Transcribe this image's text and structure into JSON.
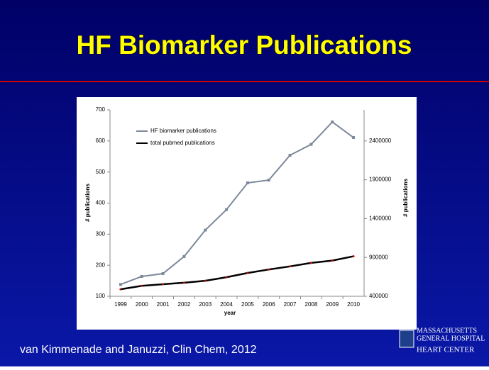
{
  "chart_data": {
    "type": "line",
    "title": "HF Biomarker Publications",
    "categories": [
      "1999",
      "2000",
      "2001",
      "2002",
      "2003",
      "2004",
      "2005",
      "2006",
      "2007",
      "2008",
      "2009",
      "2010"
    ],
    "series": [
      {
        "name": "HF biomarker publications",
        "color": "#7d889b",
        "values": [
          138,
          164,
          173,
          228,
          313,
          379,
          465,
          474,
          554,
          589,
          661,
          611
        ]
      },
      {
        "name": "total pubmed publications",
        "color": "#000000",
        "axis": "y2",
        "values": [
          490000,
          535000,
          555000,
          575000,
          600000,
          645000,
          700000,
          745000,
          785000,
          830000,
          860000,
          915000
        ]
      }
    ],
    "xlabel": "year",
    "ylabel": "# publications",
    "y2label": "# publications",
    "ylim": [
      100,
      700
    ],
    "yticks": [
      100,
      200,
      300,
      400,
      500,
      600,
      700
    ],
    "y2lim": [
      400000,
      2800000
    ],
    "y2ticks": [
      400000,
      900000,
      1400000,
      1900000,
      2400000
    ],
    "grid": false,
    "legend": "upper left"
  },
  "footer": "van Kimmenade and Januzzi, Clin Chem, 2012",
  "logo": {
    "line1": "MASSACHUSETTS",
    "line2": "GENERAL HOSPITAL",
    "line3": "HEART CENTER"
  }
}
